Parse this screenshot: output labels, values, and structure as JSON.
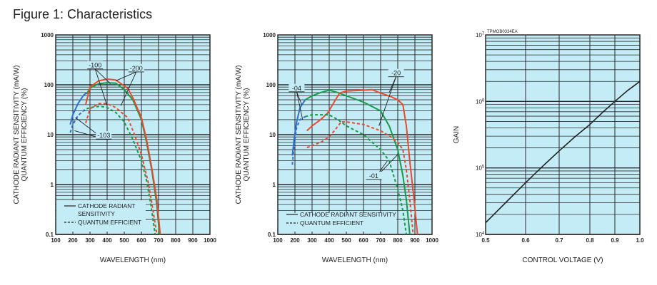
{
  "title": "Figure 1: Characteristics",
  "colors": {
    "background": "#c4ecf7",
    "grid": "#2a2a2a",
    "red": "#ea4a2c",
    "green": "#1a9a4a",
    "blue": "#2f6fcf",
    "black": "#222222"
  },
  "chart_data": [
    {
      "type": "line",
      "title": "",
      "xlabel": "WAVELENGTH (nm)",
      "ylabel": [
        "CATHODE RADIANT SENSITIVITY (mA/W)",
        "QUANTUM EFFICIENCY (%)"
      ],
      "xlim": [
        100,
        1000
      ],
      "ylim": [
        0.1,
        1000
      ],
      "yscale": "log",
      "xticks": [
        "100",
        "200",
        "300",
        "400",
        "500",
        "600",
        "700",
        "800",
        "900",
        "1000"
      ],
      "yticks": [
        "0.1",
        "1",
        "10",
        "100",
        "1000"
      ],
      "legend": {
        "placement": "bottom-left",
        "entries": [
          {
            "style": "solid",
            "label": "CATHODE RADIANT SENSITIVITY",
            "lines": [
              "CATHODE RADIANT",
              "SENSITIVITY"
            ]
          },
          {
            "style": "dashed",
            "label": "QUANTUM EFFICIENT"
          }
        ]
      },
      "series": [
        {
          "name": "-103 radiant sensitivity",
          "color": "blue",
          "style": "solid",
          "x": [
            185,
            200,
            230,
            260,
            280
          ],
          "y": [
            16,
            25,
            42,
            60,
            70
          ]
        },
        {
          "name": "-103 quantum efficiency",
          "color": "blue",
          "style": "dashed",
          "x": [
            185,
            200,
            230,
            260,
            280
          ],
          "y": [
            11,
            16,
            24,
            30,
            33
          ]
        },
        {
          "name": "-100 radiant sensitivity",
          "color": "green",
          "style": "solid",
          "x": [
            280,
            300,
            350,
            400,
            450,
            500,
            550,
            600,
            630,
            660,
            690,
            705
          ],
          "y": [
            65,
            85,
            105,
            110,
            108,
            80,
            50,
            20,
            7,
            2,
            0.4,
            0.1
          ]
        },
        {
          "name": "-200 radiant sensitivity",
          "color": "red",
          "style": "solid",
          "x": [
            275,
            300,
            350,
            400,
            450,
            500,
            520,
            550,
            600,
            630,
            660,
            690,
            710
          ],
          "y": [
            40,
            90,
            120,
            130,
            125,
            95,
            85,
            55,
            22,
            8,
            2.2,
            0.5,
            0.1
          ]
        },
        {
          "name": "-100 quantum efficiency",
          "color": "green",
          "style": "dashed",
          "x": [
            280,
            320,
            360,
            400,
            450,
            500,
            550,
            600,
            630,
            655,
            680
          ],
          "y": [
            33,
            36,
            37,
            35,
            28,
            18,
            8,
            3,
            1.2,
            0.4,
            0.1
          ]
        },
        {
          "name": "-200 quantum efficiency",
          "color": "red",
          "style": "dashed",
          "x": [
            275,
            300,
            350,
            400,
            450,
            500,
            520,
            560,
            600,
            640,
            665,
            690
          ],
          "y": [
            17,
            33,
            42,
            42,
            35,
            25,
            22,
            10,
            4,
            1.1,
            0.35,
            0.1
          ]
        }
      ],
      "annotations": [
        {
          "text": "-100",
          "tx": 330,
          "ty": 230,
          "targets": [
            [
              420,
              105
            ],
            [
              400,
              38
            ]
          ]
        },
        {
          "text": "-200",
          "tx": 570,
          "ty": 200,
          "targets": [
            [
              450,
              120
            ],
            [
              480,
              38
            ]
          ]
        },
        {
          "text": "-103",
          "tx": 380,
          "ty": 9,
          "targets": [
            [
              215,
              22
            ],
            [
              210,
              12
            ]
          ]
        }
      ]
    },
    {
      "type": "line",
      "title": "",
      "xlabel": "WAVELENGTH (nm)",
      "ylabel": [
        "CATHODE RADIANT SENSITIVITY (mA/W)",
        "QUANTUM EFFICIENCY (%)"
      ],
      "xlim": [
        100,
        1000
      ],
      "ylim": [
        0.1,
        1000
      ],
      "yscale": "log",
      "xticks": [
        "100",
        "200",
        "300",
        "400",
        "500",
        "600",
        "700",
        "800",
        "900",
        "1000"
      ],
      "yticks": [
        "0.1",
        "1",
        "10",
        "100",
        "1000"
      ],
      "legend": {
        "placement": "bottom-left",
        "entries": [
          {
            "style": "solid",
            "label": "CATHODE RADIANT SENSITIVITY",
            "lines": [
              "CATHODE RADIANT SENSITIVITY"
            ]
          },
          {
            "style": "dashed",
            "label": "QUANTUM EFFICIENT"
          }
        ]
      },
      "series": [
        {
          "name": "-04 radiant sensitivity",
          "color": "blue",
          "style": "solid",
          "x": [
            185,
            195,
            210,
            230,
            260
          ],
          "y": [
            3.8,
            8,
            18,
            35,
            50
          ]
        },
        {
          "name": "-04 quantum efficiency",
          "color": "blue",
          "style": "dashed",
          "x": [
            185,
            195,
            210,
            230,
            260
          ],
          "y": [
            2.5,
            6,
            14,
            20,
            23
          ]
        },
        {
          "name": "-01 radiant sensitivity",
          "color": "green",
          "style": "solid",
          "x": [
            260,
            300,
            350,
            400,
            450,
            500,
            600,
            700,
            750,
            800,
            830,
            850,
            870
          ],
          "y": [
            50,
            60,
            70,
            78,
            70,
            60,
            45,
            30,
            15,
            5,
            1.5,
            0.5,
            0.1
          ]
        },
        {
          "name": "-20 radiant sensitivity",
          "color": "red",
          "style": "solid",
          "x": [
            270,
            300,
            350,
            390,
            420,
            460,
            500,
            600,
            650,
            700,
            760,
            800,
            830,
            850,
            870,
            895,
            915
          ],
          "y": [
            12,
            15,
            20,
            27,
            40,
            68,
            75,
            78,
            80,
            68,
            58,
            50,
            40,
            15,
            3,
            0.5,
            0.1
          ]
        },
        {
          "name": "-01 quantum efficiency",
          "color": "green",
          "style": "dashed",
          "x": [
            260,
            300,
            350,
            400,
            450,
            500,
            600,
            700,
            750,
            800,
            830,
            850
          ],
          "y": [
            23,
            25,
            25,
            25,
            20,
            15,
            10,
            5,
            3,
            0.8,
            0.3,
            0.1
          ]
        },
        {
          "name": "-20 quantum efficiency",
          "color": "red",
          "style": "dashed",
          "x": [
            270,
            350,
            400,
            430,
            470,
            500,
            600,
            700,
            760,
            800,
            830,
            850,
            870,
            890
          ],
          "y": [
            5.5,
            7,
            9,
            12,
            18,
            18,
            16,
            12,
            9,
            7,
            5,
            2,
            0.5,
            0.1
          ]
        }
      ],
      "annotations": [
        {
          "text": "-04",
          "tx": 210,
          "ty": 80,
          "targets": [
            [
              240,
              40
            ],
            [
              245,
              20
            ]
          ]
        },
        {
          "text": "-20",
          "tx": 790,
          "ty": 160,
          "targets": [
            [
              750,
              70
            ],
            [
              690,
              15
            ]
          ]
        },
        {
          "text": "-01",
          "tx": 660,
          "ty": 1.4,
          "targets": [
            [
              740,
              3
            ],
            [
              800,
              4
            ]
          ]
        }
      ]
    },
    {
      "type": "line",
      "title": "",
      "xlabel": "CONTROL VOLTAGE (V)",
      "ylabel": [
        "GAIN"
      ],
      "corner_label": "TPMOB0334EA",
      "xlim": [
        0.5,
        1.0
      ],
      "ylim": [
        10000,
        10000000
      ],
      "yscale": "log",
      "xticks": [
        "0.5",
        "0.6",
        "0.7",
        "0.8",
        "0.9",
        "1.0"
      ],
      "yticks": [
        {
          "base": "10",
          "exp": "4"
        },
        {
          "base": "10",
          "exp": "5"
        },
        {
          "base": "10",
          "exp": "6"
        },
        {
          "base": "10",
          "exp": "7"
        }
      ],
      "series": [
        {
          "name": "Gain",
          "color": "black",
          "style": "solid",
          "x": [
            0.5,
            0.55,
            0.6,
            0.65,
            0.7,
            0.75,
            0.8,
            0.85,
            0.9,
            0.95,
            1.0
          ],
          "y": [
            15000,
            30000,
            60000,
            105000,
            180000,
            290000,
            450000,
            680000,
            1000000,
            1450000,
            2000000
          ]
        }
      ]
    }
  ]
}
